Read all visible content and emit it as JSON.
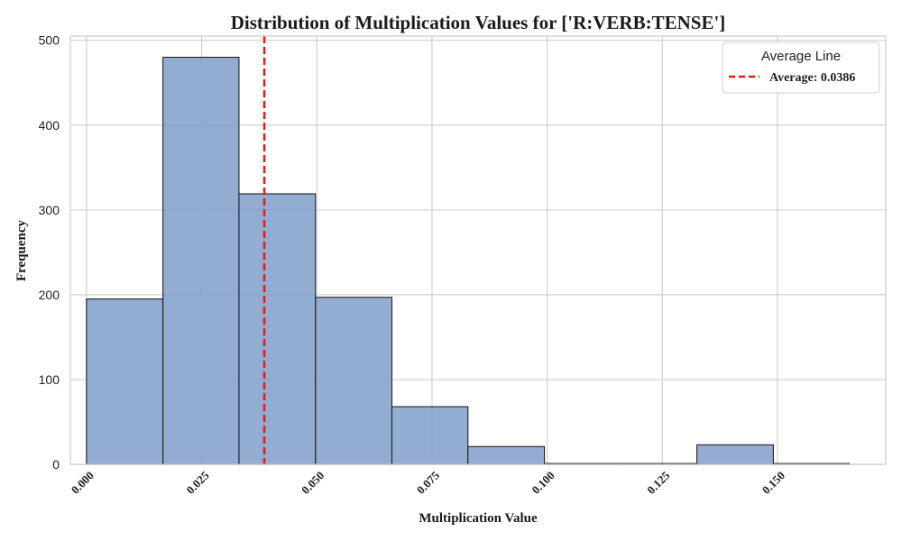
{
  "chart_data": {
    "type": "bar",
    "title": "Distribution of Multiplication Values for ['R:VERB:TENSE']",
    "xlabel": "Multiplication Value",
    "ylabel": "Frequency",
    "xlim": [
      -0.0035,
      0.1735
    ],
    "ylim": [
      0,
      505
    ],
    "xticks": [
      0.0,
      0.025,
      0.05,
      0.075,
      0.1,
      0.125,
      0.15
    ],
    "xtick_labels": [
      "0.000",
      "0.025",
      "0.050",
      "0.075",
      "0.100",
      "0.125",
      "0.150"
    ],
    "yticks": [
      0,
      100,
      200,
      300,
      400,
      500
    ],
    "ytick_labels": [
      "0",
      "100",
      "200",
      "300",
      "400",
      "500"
    ],
    "bins": [
      {
        "x0": 0.0,
        "x1": 0.0166,
        "count": 195
      },
      {
        "x0": 0.0166,
        "x1": 0.0331,
        "count": 480
      },
      {
        "x0": 0.0331,
        "x1": 0.0497,
        "count": 319
      },
      {
        "x0": 0.0497,
        "x1": 0.0663,
        "count": 197
      },
      {
        "x0": 0.0663,
        "x1": 0.0828,
        "count": 68
      },
      {
        "x0": 0.0828,
        "x1": 0.0994,
        "count": 21
      },
      {
        "x0": 0.0994,
        "x1": 0.1159,
        "count": 1
      },
      {
        "x0": 0.1159,
        "x1": 0.1325,
        "count": 1
      },
      {
        "x0": 0.1325,
        "x1": 0.1491,
        "count": 23
      },
      {
        "x0": 0.1491,
        "x1": 0.1656,
        "count": 1
      }
    ],
    "average": 0.0386,
    "average_color": "#e31a1c",
    "bar_color": "#7b9bc8",
    "bar_edge_color": "#222222",
    "grid": true,
    "legend": {
      "title": "Average Line",
      "entry": "Average: 0.0386",
      "placement": "top-right"
    }
  }
}
